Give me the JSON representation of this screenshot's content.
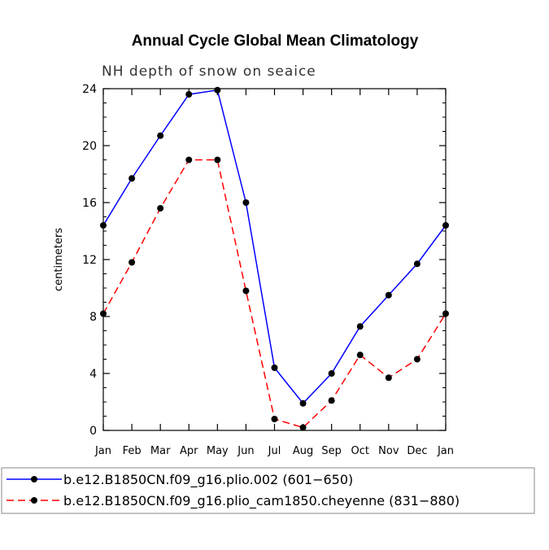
{
  "chart_data": {
    "type": "line",
    "title": "Annual Cycle Global Mean Climatology",
    "subtitle": "NH depth of snow on seaice",
    "xlabel": "",
    "ylabel": "centimeters",
    "categories": [
      "Jan",
      "Feb",
      "Mar",
      "Apr",
      "May",
      "Jun",
      "Jul",
      "Aug",
      "Sep",
      "Oct",
      "Nov",
      "Dec",
      "Jan"
    ],
    "ylim": [
      0,
      24
    ],
    "yticks": [
      "0",
      "4",
      "8",
      "12",
      "16",
      "20",
      "24"
    ],
    "series": [
      {
        "name": "b.e12.B1850CN.f09_g16.plio.002 (601−650)",
        "color": "#0000ff",
        "dash": "solid",
        "values": [
          14.4,
          17.7,
          20.7,
          23.6,
          23.9,
          16.0,
          4.4,
          1.9,
          4.0,
          7.3,
          9.5,
          11.7,
          14.4
        ]
      },
      {
        "name": "b.e12.B1850CN.f09_g16.plio_cam1850.cheyenne (831−880)",
        "color": "#ff0000",
        "dash": "dashed",
        "values": [
          8.2,
          11.8,
          15.6,
          19.0,
          19.0,
          9.8,
          0.8,
          0.2,
          2.1,
          5.3,
          3.7,
          5.0,
          8.2
        ]
      }
    ]
  }
}
